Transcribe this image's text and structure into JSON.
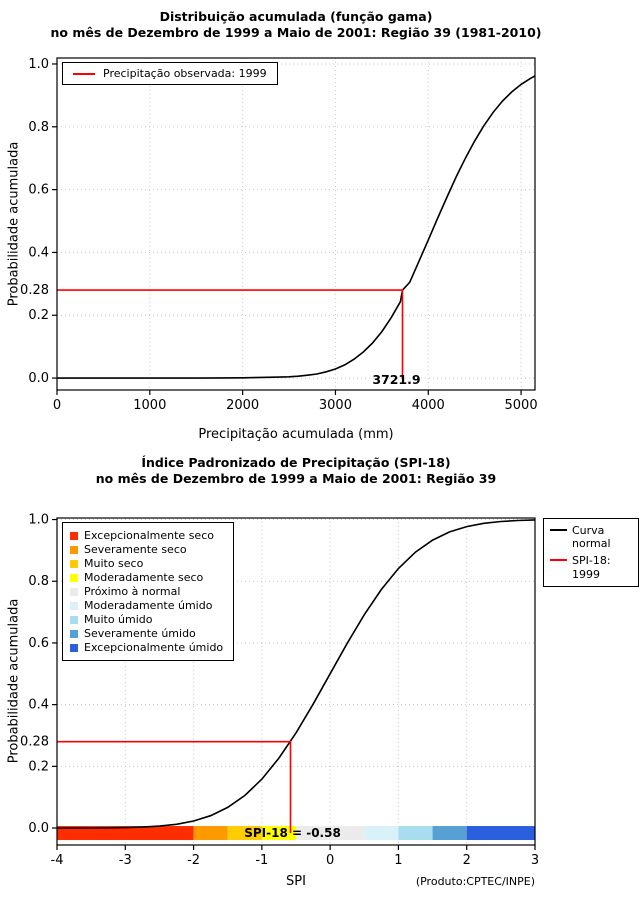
{
  "page": {
    "credit": "(Produto:CPTEC/INPE)"
  },
  "chart_data": [
    {
      "type": "line",
      "title": "Distribuição acumulada (função gama)",
      "subtitle": "no mês de Dezembro de 1999 a Maio de 2001: Região 39 (1981-2010)",
      "xlabel": "Precipitação acumulada (mm)",
      "ylabel": "Probabilidade acumulada",
      "xlim": [
        0,
        5150
      ],
      "ylim": [
        0,
        1
      ],
      "xticks": [
        0,
        1000,
        2000,
        3000,
        4000,
        5000
      ],
      "xtick_labels": [
        "0",
        "1000",
        "2000",
        "3000",
        "4000",
        "5000"
      ],
      "yticks": [
        0,
        0.2,
        0.4,
        0.6,
        0.8,
        1
      ],
      "ytick_labels": [
        "0.0",
        "0.2",
        "0.4",
        "0.6",
        "0.8",
        "1.0"
      ],
      "grid": true,
      "legend_position": "top-left",
      "legend_label": "Precipitação observada: 1999",
      "series": [
        {
          "name": "Distribuição gama acumulada",
          "color": "#000000",
          "x": [
            0,
            300,
            600,
            900,
            1200,
            1500,
            1800,
            2000,
            2200,
            2400,
            2500,
            2600,
            2700,
            2800,
            2900,
            3000,
            3100,
            3200,
            3300,
            3400,
            3500,
            3600,
            3700,
            3721.9,
            3800,
            3900,
            4000,
            4100,
            4200,
            4300,
            4400,
            4500,
            4600,
            4700,
            4800,
            4900,
            5000,
            5100,
            5150
          ],
          "y": [
            0,
            0,
            0,
            0,
            0,
            0,
            0.0005,
            0.001,
            0.002,
            0.003,
            0.004,
            0.006,
            0.009,
            0.013,
            0.02,
            0.029,
            0.042,
            0.06,
            0.083,
            0.112,
            0.148,
            0.192,
            0.243,
            0.28,
            0.305,
            0.372,
            0.44,
            0.508,
            0.575,
            0.64,
            0.7,
            0.755,
            0.804,
            0.846,
            0.882,
            0.911,
            0.935,
            0.954,
            0.962
          ]
        }
      ],
      "marker": {
        "x": 3721.9,
        "y": 0.28,
        "x_label": "3721.9",
        "y_label": "0.28",
        "color": "#ff0000"
      }
    },
    {
      "type": "line",
      "title": "Índice Padronizado de Precipitação (SPI-18)",
      "subtitle": "no mês de Dezembro de 1999 a Maio de 2001: Região 39",
      "xlabel": "SPI",
      "ylabel": "Probabilidade acumulada",
      "xlim": [
        -4,
        3
      ],
      "ylim": [
        0,
        1
      ],
      "xticks": [
        -4,
        -3,
        -2,
        -1,
        0,
        1,
        2,
        3
      ],
      "xtick_labels": [
        "-4",
        "-3",
        "-2",
        "-1",
        "0",
        "1",
        "2",
        "3"
      ],
      "yticks": [
        0,
        0.2,
        0.4,
        0.6,
        0.8,
        1
      ],
      "ytick_labels": [
        "0.0",
        "0.2",
        "0.4",
        "0.6",
        "0.8",
        "1.0"
      ],
      "grid": true,
      "legend_position": "top-left",
      "series": [
        {
          "name": "Curva normal",
          "color": "#000000",
          "x": [
            -4,
            -3.75,
            -3.5,
            -3.25,
            -3,
            -2.75,
            -2.5,
            -2.25,
            -2,
            -1.75,
            -1.5,
            -1.25,
            -1,
            -0.75,
            -0.5,
            -0.25,
            0,
            0.25,
            0.5,
            0.75,
            1,
            1.25,
            1.5,
            1.75,
            2,
            2.25,
            2.5,
            2.75,
            3
          ],
          "y": [
            0,
            0.0001,
            0.0002,
            0.0006,
            0.0013,
            0.003,
            0.0062,
            0.0122,
            0.0228,
            0.0401,
            0.0668,
            0.1056,
            0.1587,
            0.2266,
            0.3085,
            0.4013,
            0.5,
            0.5987,
            0.6915,
            0.7734,
            0.8413,
            0.8944,
            0.9332,
            0.9599,
            0.9772,
            0.9878,
            0.9938,
            0.997,
            0.9987
          ]
        }
      ],
      "series_legend": [
        {
          "label": "Curva\nnormal",
          "color": "#000000"
        },
        {
          "label": "SPI-18: 1999",
          "color": "#ff0000"
        }
      ],
      "categories": [
        {
          "label": "Excepcionalmente seco",
          "color": "#ff2d00"
        },
        {
          "label": "Severamente seco",
          "color": "#ff9900"
        },
        {
          "label": "Muito seco",
          "color": "#ffcc00"
        },
        {
          "label": "Moderadamente seco",
          "color": "#ffff00"
        },
        {
          "label": "Próximo à normal",
          "color": "#ebebeb"
        },
        {
          "label": "Moderadamente úmido",
          "color": "#d9f1f9"
        },
        {
          "label": "Muito úmido",
          "color": "#a8ddf0"
        },
        {
          "label": "Severamente úmido",
          "color": "#57a0d3"
        },
        {
          "label": "Excepcionalmente úmido",
          "color": "#2b5fde"
        }
      ],
      "bar_segments": [
        {
          "from": -4,
          "to": -2,
          "color": "#ff2d00"
        },
        {
          "from": -2,
          "to": -1.5,
          "color": "#ff9900"
        },
        {
          "from": -1.5,
          "to": -1,
          "color": "#ffcc00"
        },
        {
          "from": -1,
          "to": -0.5,
          "color": "#ffff00"
        },
        {
          "from": -0.5,
          "to": 0.5,
          "color": "#ebebeb"
        },
        {
          "from": 0.5,
          "to": 1,
          "color": "#d9f1f9"
        },
        {
          "from": 1,
          "to": 1.5,
          "color": "#a8ddf0"
        },
        {
          "from": 1.5,
          "to": 2,
          "color": "#57a0d3"
        },
        {
          "from": 2,
          "to": 3,
          "color": "#2b5fde"
        }
      ],
      "annotation": "SPI-18 = -0.58",
      "marker": {
        "x": -0.58,
        "y": 0.28,
        "y_label": "0.28",
        "color": "#ff0000"
      }
    }
  ]
}
